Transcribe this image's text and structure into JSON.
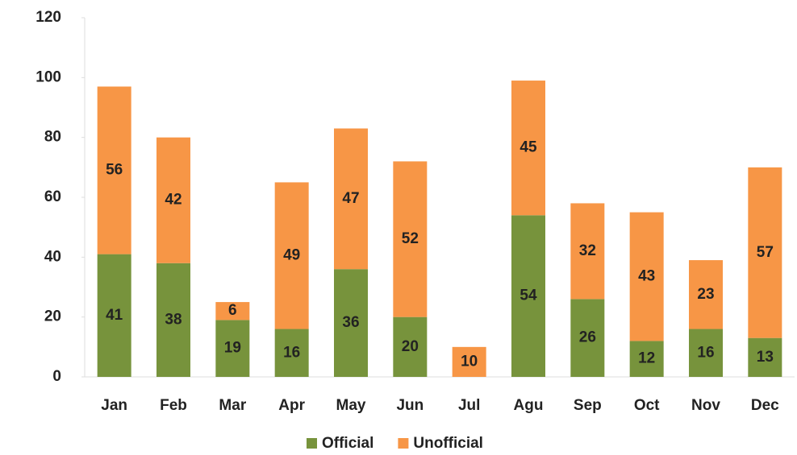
{
  "chart_data": {
    "type": "stacked_bar",
    "categories": [
      "Jan",
      "Feb",
      "Mar",
      "Apr",
      "May",
      "Jun",
      "Jul",
      "Agu",
      "Sep",
      "Oct",
      "Nov",
      "Dec"
    ],
    "series": [
      {
        "name": "Official",
        "color": "#77933c",
        "values": [
          41,
          38,
          19,
          16,
          36,
          20,
          0,
          54,
          26,
          12,
          16,
          13
        ]
      },
      {
        "name": "Unofficial",
        "color": "#f79646",
        "values": [
          56,
          42,
          6,
          49,
          47,
          52,
          10,
          45,
          32,
          43,
          23,
          57
        ]
      }
    ],
    "ylim": [
      0,
      120
    ],
    "yticks": [
      0,
      20,
      40,
      60,
      80,
      100,
      120
    ],
    "grid": false,
    "legend": "bottom"
  }
}
